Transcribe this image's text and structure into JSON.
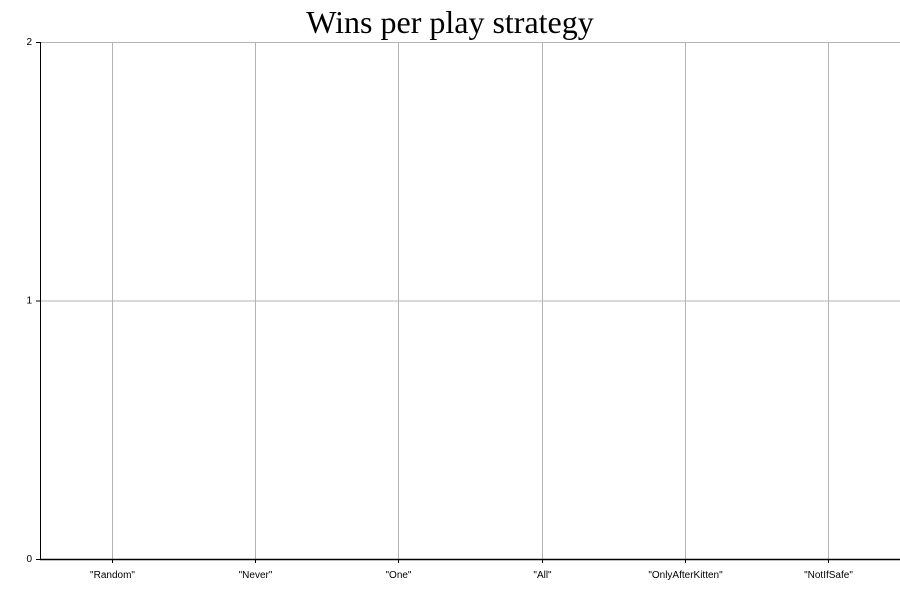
{
  "chart_data": {
    "type": "bar",
    "title": "Wins per play strategy",
    "xlabel": "",
    "ylabel": "",
    "categories": [
      "\"Random\"",
      "\"Never\"",
      "\"One\"",
      "\"All\"",
      "\"OnlyAfterKitten\"",
      "\"NotIfSafe\""
    ],
    "values": [
      0,
      0,
      0,
      0,
      0,
      0
    ],
    "ylim": [
      0,
      2
    ],
    "yticks": [
      "0",
      "1",
      "2"
    ],
    "grid": true,
    "legend": "none",
    "colors": {
      "axis": "#000000",
      "grid": "#b3b3b3",
      "background": "#ffffff"
    }
  }
}
